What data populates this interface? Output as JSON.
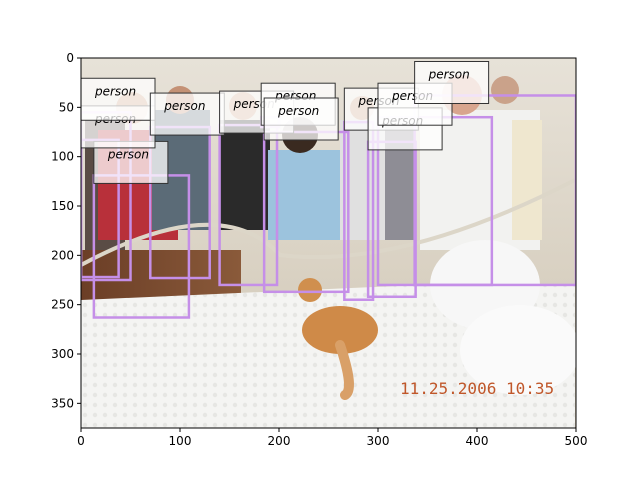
{
  "image": {
    "timestamp": "11.25.2006 10:35"
  },
  "axes": {
    "x_ticks": [
      "0",
      "100",
      "200",
      "300",
      "400",
      "500"
    ],
    "y_ticks": [
      "0",
      "50",
      "100",
      "150",
      "200",
      "250",
      "300",
      "350"
    ],
    "xlim": [
      0,
      500
    ],
    "ylim": [
      375,
      0
    ]
  },
  "detections": [
    {
      "label": "person",
      "x0": 13,
      "y0": 119,
      "x1": 109,
      "y1": 263
    },
    {
      "label": "person",
      "x0": 0,
      "y0": 83,
      "x1": 38,
      "y1": 222
    },
    {
      "label": "person",
      "x0": 0,
      "y0": 55,
      "x1": 50,
      "y1": 225
    },
    {
      "label": "person",
      "x0": 70,
      "y0": 70,
      "x1": 130,
      "y1": 223
    },
    {
      "label": "person",
      "x0": 140,
      "y0": 68,
      "x1": 198,
      "y1": 230
    },
    {
      "label": "person",
      "x0": 182,
      "y0": 60,
      "x1": 200,
      "y1": 70
    },
    {
      "label": "person",
      "x0": 185,
      "y0": 75,
      "x1": 270,
      "y1": 237
    },
    {
      "label": "person",
      "x0": 266,
      "y0": 65,
      "x1": 295,
      "y1": 245
    },
    {
      "label": "person",
      "x0": 290,
      "y0": 85,
      "x1": 338,
      "y1": 242
    },
    {
      "label": "person",
      "x0": 300,
      "y0": 60,
      "x1": 415,
      "y1": 230
    },
    {
      "label": "person",
      "x0": 337,
      "y0": 38,
      "x1": 500,
      "y1": 230
    }
  ],
  "colors": {
    "box": "#c58fe8",
    "label_bg": "#ffffff",
    "label_border": "#333333"
  }
}
